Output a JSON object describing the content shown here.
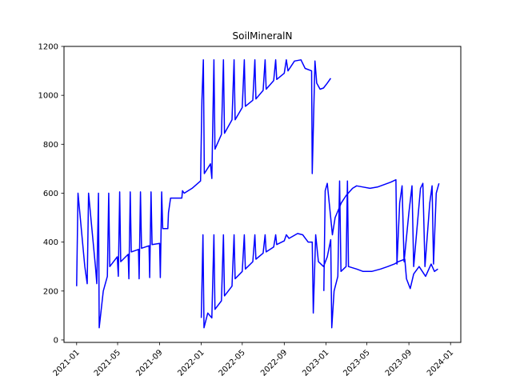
{
  "chart_data": {
    "type": "line",
    "title": "SoilMineralN",
    "xlabel": "",
    "ylabel": "",
    "x_axis": "date",
    "xlim": [
      "2020-11-25",
      "2024-01-31"
    ],
    "ylim": [
      -10,
      1200
    ],
    "yticks": [
      0,
      200,
      400,
      600,
      800,
      1000,
      1200
    ],
    "xticks": [
      "2021-01",
      "2021-05",
      "2021-09",
      "2022-01",
      "2022-05",
      "2022-09",
      "2023-01",
      "2023-05",
      "2023-09",
      "2024-01"
    ],
    "grid": false,
    "line_color": "#0000ff",
    "series": [
      {
        "segments": [
          [
            [
              "2021-01-01",
              220
            ],
            [
              "2021-01-05",
              600
            ],
            [
              "2021-01-25",
              300
            ],
            [
              "2021-02-01",
              230
            ],
            [
              "2021-02-05",
              600
            ],
            [
              "2021-02-25",
              300
            ],
            [
              "2021-03-01",
              230
            ],
            [
              "2021-03-06",
              600
            ],
            [
              "2021-03-08",
              50
            ],
            [
              "2021-03-20",
              200
            ],
            [
              "2021-04-01",
              260
            ],
            [
              "2021-04-05",
              600
            ],
            [
              "2021-04-08",
              300
            ],
            [
              "2021-04-30",
              340
            ],
            [
              "2021-05-03",
              260
            ],
            [
              "2021-05-07",
              605
            ],
            [
              "2021-05-10",
              320
            ],
            [
              "2021-06-01",
              350
            ],
            [
              "2021-06-03",
              250
            ],
            [
              "2021-06-07",
              605
            ],
            [
              "2021-06-10",
              360
            ],
            [
              "2021-07-01",
              370
            ],
            [
              "2021-07-03",
              250
            ],
            [
              "2021-07-07",
              605
            ],
            [
              "2021-07-10",
              375
            ],
            [
              "2021-08-01",
              385
            ],
            [
              "2021-08-03",
              255
            ],
            [
              "2021-08-07",
              605
            ],
            [
              "2021-08-10",
              390
            ],
            [
              "2021-09-01",
              395
            ],
            [
              "2021-09-03",
              255
            ],
            [
              "2021-09-07",
              605
            ],
            [
              "2021-09-10",
              455
            ],
            [
              "2021-09-25",
              455
            ],
            [
              "2021-09-27",
              520
            ],
            [
              "2021-10-03",
              580
            ],
            [
              "2021-11-05",
              580
            ],
            [
              "2021-11-07",
              610
            ],
            [
              "2021-11-12",
              600
            ],
            [
              "2021-12-05",
              620
            ],
            [
              "2021-12-30",
              650
            ],
            [
              "2022-01-03",
              980
            ],
            [
              "2022-01-07",
              1145
            ],
            [
              "2022-01-10",
              680
            ],
            [
              "2022-01-28",
              720
            ],
            [
              "2022-02-01",
              660
            ],
            [
              "2022-02-07",
              1145
            ],
            [
              "2022-02-10",
              780
            ],
            [
              "2022-03-01",
              840
            ],
            [
              "2022-03-07",
              1145
            ],
            [
              "2022-03-10",
              845
            ],
            [
              "2022-04-01",
              900
            ],
            [
              "2022-04-07",
              1145
            ],
            [
              "2022-04-10",
              900
            ],
            [
              "2022-05-01",
              950
            ],
            [
              "2022-05-07",
              1145
            ],
            [
              "2022-05-10",
              955
            ],
            [
              "2022-06-01",
              980
            ],
            [
              "2022-06-07",
              1145
            ],
            [
              "2022-06-10",
              985
            ],
            [
              "2022-07-01",
              1020
            ],
            [
              "2022-07-07",
              1145
            ],
            [
              "2022-07-10",
              1025
            ],
            [
              "2022-08-01",
              1060
            ],
            [
              "2022-08-07",
              1145
            ],
            [
              "2022-08-10",
              1065
            ],
            [
              "2022-09-01",
              1090
            ],
            [
              "2022-09-07",
              1145
            ],
            [
              "2022-09-12",
              1100
            ],
            [
              "2022-10-01",
              1140
            ],
            [
              "2022-10-20",
              1145
            ],
            [
              "2022-11-01",
              1110
            ],
            [
              "2022-11-20",
              1100
            ],
            [
              "2022-11-22",
              680
            ],
            [
              "2022-11-30",
              1140
            ],
            [
              "2022-12-05",
              1050
            ],
            [
              "2022-12-15",
              1025
            ],
            [
              "2022-12-25",
              1030
            ],
            [
              "2023-01-05",
              1050
            ],
            [
              "2023-01-15",
              1070
            ]
          ],
          [
            [
              "2022-01-01",
              90
            ],
            [
              "2022-01-06",
              430
            ],
            [
              "2022-01-09",
              50
            ],
            [
              "2022-01-20",
              110
            ],
            [
              "2022-02-01",
              90
            ],
            [
              "2022-02-07",
              430
            ],
            [
              "2022-02-10",
              125
            ],
            [
              "2022-03-01",
              160
            ],
            [
              "2022-03-07",
              430
            ],
            [
              "2022-03-10",
              180
            ],
            [
              "2022-04-01",
              220
            ],
            [
              "2022-04-07",
              430
            ],
            [
              "2022-04-10",
              250
            ],
            [
              "2022-05-01",
              280
            ],
            [
              "2022-05-07",
              430
            ],
            [
              "2022-05-10",
              290
            ],
            [
              "2022-06-01",
              320
            ],
            [
              "2022-06-07",
              430
            ],
            [
              "2022-06-10",
              330
            ],
            [
              "2022-07-01",
              355
            ],
            [
              "2022-07-07",
              430
            ],
            [
              "2022-07-10",
              360
            ],
            [
              "2022-08-01",
              380
            ],
            [
              "2022-08-07",
              430
            ],
            [
              "2022-08-10",
              390
            ],
            [
              "2022-09-01",
              405
            ],
            [
              "2022-09-07",
              430
            ],
            [
              "2022-09-15",
              415
            ],
            [
              "2022-10-10",
              435
            ],
            [
              "2022-10-25",
              430
            ],
            [
              "2022-11-10",
              400
            ],
            [
              "2022-11-22",
              400
            ],
            [
              "2022-11-25",
              110
            ],
            [
              "2022-12-02",
              430
            ],
            [
              "2022-12-10",
              320
            ],
            [
              "2022-12-25",
              300
            ],
            [
              "2023-01-05",
              340
            ],
            [
              "2023-01-15",
              410
            ],
            [
              "2023-01-18",
              50
            ],
            [
              "2023-01-25",
              200
            ],
            [
              "2023-02-05",
              260
            ],
            [
              "2023-02-10",
              650
            ],
            [
              "2023-02-14",
              280
            ],
            [
              "2023-03-01",
              300
            ],
            [
              "2023-03-05",
              650
            ],
            [
              "2023-03-08",
              300
            ],
            [
              "2023-04-01",
              290
            ],
            [
              "2023-04-20",
              280
            ],
            [
              "2023-05-15",
              280
            ],
            [
              "2023-06-10",
              290
            ],
            [
              "2023-07-01",
              300
            ],
            [
              "2023-07-20",
              310
            ],
            [
              "2023-08-01",
              320
            ],
            [
              "2023-08-20",
              330
            ],
            [
              "2023-08-25",
              250
            ],
            [
              "2023-09-05",
              210
            ],
            [
              "2023-09-15",
              270
            ],
            [
              "2023-10-01",
              300
            ],
            [
              "2023-10-20",
              260
            ],
            [
              "2023-11-05",
              310
            ],
            [
              "2023-11-15",
              280
            ],
            [
              "2023-11-25",
              290
            ]
          ],
          [
            [
              "2022-12-26",
              200
            ],
            [
              "2022-12-30",
              610
            ],
            [
              "2023-01-02",
              625
            ],
            [
              "2023-01-05",
              640
            ],
            [
              "2023-01-20",
              430
            ],
            [
              "2023-01-28",
              500
            ],
            [
              "2023-02-15",
              560
            ],
            [
              "2023-03-01",
              590
            ],
            [
              "2023-03-20",
              620
            ],
            [
              "2023-04-01",
              630
            ],
            [
              "2023-04-20",
              625
            ],
            [
              "2023-05-10",
              620
            ],
            [
              "2023-06-01",
              625
            ],
            [
              "2023-06-20",
              635
            ],
            [
              "2023-07-10",
              645
            ],
            [
              "2023-07-25",
              655
            ],
            [
              "2023-07-28",
              310
            ],
            [
              "2023-08-05",
              560
            ],
            [
              "2023-08-12",
              630
            ],
            [
              "2023-08-18",
              320
            ],
            [
              "2023-09-01",
              520
            ],
            [
              "2023-09-10",
              630
            ],
            [
              "2023-09-15",
              300
            ],
            [
              "2023-10-05",
              620
            ],
            [
              "2023-10-12",
              640
            ],
            [
              "2023-10-18",
              300
            ],
            [
              "2023-11-01",
              560
            ],
            [
              "2023-11-08",
              630
            ],
            [
              "2023-11-12",
              310
            ],
            [
              "2023-11-20",
              600
            ],
            [
              "2023-11-28",
              640
            ]
          ]
        ]
      }
    ]
  }
}
